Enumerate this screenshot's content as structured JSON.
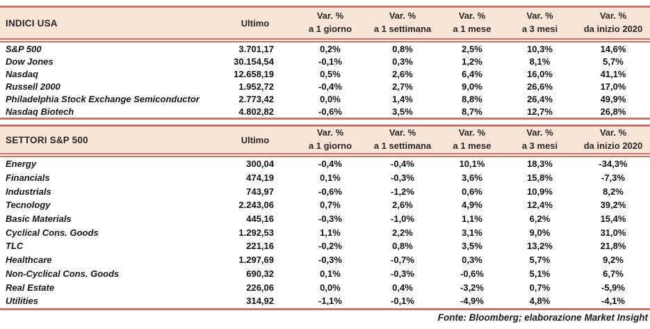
{
  "columns": {
    "ultimo": "Ultimo",
    "var_label": "Var. %",
    "periods": [
      "a 1 giorno",
      "a 1 settimana",
      "a 1 mese",
      "a 3 mesi",
      "da inizio 2020"
    ]
  },
  "tables": [
    {
      "title": "INDICI USA",
      "rows": [
        {
          "name": "S&P 500",
          "ultimo": "3.701,17",
          "vars": [
            "0,2%",
            "0,8%",
            "2,5%",
            "10,3%",
            "14,6%"
          ]
        },
        {
          "name": "Dow Jones",
          "ultimo": "30.154,54",
          "vars": [
            "-0,1%",
            "0,3%",
            "1,2%",
            "8,1%",
            "5,7%"
          ]
        },
        {
          "name": "Nasdaq",
          "ultimo": "12.658,19",
          "vars": [
            "0,5%",
            "2,6%",
            "6,4%",
            "16,0%",
            "41,1%"
          ]
        },
        {
          "name": "Russell 2000",
          "ultimo": "1.952,72",
          "vars": [
            "-0,4%",
            "2,7%",
            "9,0%",
            "26,6%",
            "17,0%"
          ]
        },
        {
          "name": "Philadelphia Stock Exchange Semiconductor",
          "ultimo": "2.773,42",
          "vars": [
            "0,0%",
            "1,4%",
            "8,8%",
            "26,4%",
            "49,9%"
          ]
        },
        {
          "name": "Nasdaq Biotech",
          "ultimo": "4.802,82",
          "vars": [
            "-0,6%",
            "3,5%",
            "8,7%",
            "12,7%",
            "26,8%"
          ]
        }
      ]
    },
    {
      "title": "SETTORI S&P 500",
      "rows": [
        {
          "name": "Energy",
          "ultimo": "300,04",
          "vars": [
            "-0,4%",
            "-0,4%",
            "10,1%",
            "18,3%",
            "-34,3%"
          ]
        },
        {
          "name": "Financials",
          "ultimo": "474,19",
          "vars": [
            "0,1%",
            "-0,3%",
            "3,6%",
            "15,8%",
            "-7,3%"
          ]
        },
        {
          "name": "Industrials",
          "ultimo": "743,97",
          "vars": [
            "-0,6%",
            "-1,2%",
            "0,6%",
            "10,9%",
            "8,2%"
          ]
        },
        {
          "name": "Tecnology",
          "ultimo": "2.243,06",
          "vars": [
            "0,7%",
            "2,6%",
            "4,9%",
            "12,4%",
            "39,2%"
          ]
        },
        {
          "name": "Basic Materials",
          "ultimo": "445,16",
          "vars": [
            "-0,3%",
            "-1,0%",
            "1,1%",
            "6,2%",
            "15,4%"
          ]
        },
        {
          "name": "Cyclical Cons. Goods",
          "ultimo": "1.292,53",
          "vars": [
            "1,1%",
            "2,2%",
            "3,1%",
            "9,0%",
            "31,0%"
          ]
        },
        {
          "name": "TLC",
          "ultimo": "221,16",
          "vars": [
            "-0,2%",
            "0,8%",
            "3,5%",
            "13,2%",
            "21,8%"
          ]
        },
        {
          "name": "Healthcare",
          "ultimo": "1.297,69",
          "vars": [
            "-0,3%",
            "-0,7%",
            "0,3%",
            "5,7%",
            "9,2%"
          ]
        },
        {
          "name": "Non-Cyclical Cons. Goods",
          "ultimo": "690,32",
          "vars": [
            "0,1%",
            "-0,3%",
            "-0,6%",
            "5,1%",
            "6,7%"
          ]
        },
        {
          "name": "Real Estate",
          "ultimo": "226,06",
          "vars": [
            "0,0%",
            "0,4%",
            "-3,2%",
            "0,7%",
            "-5,9%"
          ]
        },
        {
          "name": "Utilities",
          "ultimo": "314,92",
          "vars": [
            "-1,1%",
            "-0,1%",
            "-4,9%",
            "4,8%",
            "-4,1%"
          ]
        }
      ]
    }
  ],
  "footer": "Fonte: Bloomberg; elaborazione Market Insight",
  "colors": {
    "header_bg": "#fae4d5",
    "border_salmon": "#c7756a",
    "accent_gold": "#e9b44c",
    "text": "#1c1c1c"
  }
}
